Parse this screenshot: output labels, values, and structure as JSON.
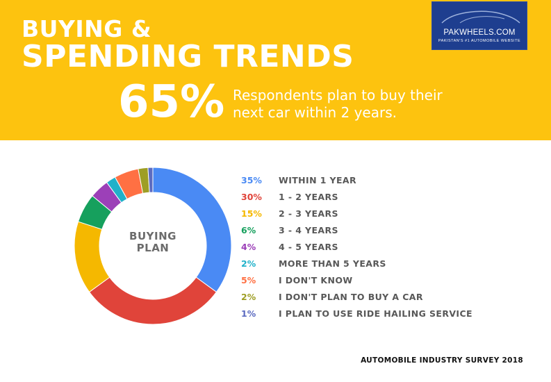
{
  "header": {
    "title_line1": "BUYING &",
    "title_line2": "SPENDING TRENDS",
    "stat_value": "65%",
    "stat_text": "Respondents plan to buy their next car within 2 years."
  },
  "logo": {
    "name": "PAKWHEELS.COM",
    "tagline": "PAKISTAN'S #1 AUTOMOBILE WEBSITE"
  },
  "chart_data": {
    "type": "pie",
    "title": "BUYING PLAN",
    "center_label_line1": "BUYING",
    "center_label_line2": "PLAN",
    "slices": [
      {
        "label": "WITHIN 1 YEAR",
        "value": 35,
        "display": "35%",
        "color": "#4a8af4"
      },
      {
        "label": "1 - 2 YEARS",
        "value": 30,
        "display": "30%",
        "color": "#e0443a"
      },
      {
        "label": "2 - 3 YEARS",
        "value": 15,
        "display": "15%",
        "color": "#f5b800"
      },
      {
        "label": "3 - 4 YEARS",
        "value": 6,
        "display": "6%",
        "color": "#16a05d"
      },
      {
        "label": "4 - 5 YEARS",
        "value": 4,
        "display": "4%",
        "color": "#9c40b8"
      },
      {
        "label": "MORE THAN 5 YEARS",
        "value": 2,
        "display": "2%",
        "color": "#21b1c9"
      },
      {
        "label": "I DON'T KNOW",
        "value": 5,
        "display": "5%",
        "color": "#ff7043"
      },
      {
        "label": "I DON'T PLAN TO BUY A CAR",
        "value": 2,
        "display": "2%",
        "color": "#9e9e24"
      },
      {
        "label": "I PLAN TO USE RIDE HAILING SERVICE",
        "value": 1,
        "display": "1%",
        "color": "#5c6bc0"
      }
    ]
  },
  "footer": {
    "text": "AUTOMOBILE INDUSTRY SURVEY 2018"
  }
}
